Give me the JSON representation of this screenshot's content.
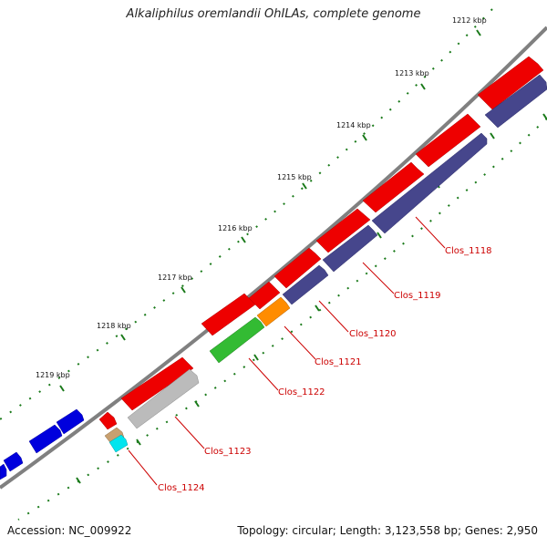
{
  "title": "Alkaliphilus oremlandii OhILAs, complete genome",
  "footer": {
    "accession": "Accession: NC_009922",
    "summary": "Topology: circular; Length: 3,123,558 bp; Genes: 2,950"
  },
  "ticks": [
    "1212 kbp",
    "1213 kbp",
    "1214 kbp",
    "1215 kbp",
    "1216 kbp",
    "1217 kbp",
    "1218 kbp",
    "1219 kbp"
  ],
  "genes": [
    "Clos_1118",
    "Clos_1119",
    "Clos_1120",
    "Clos_1121",
    "Clos_1122",
    "Clos_1123",
    "Clos_1124"
  ],
  "colors": {
    "forward_cds": "#ee0000",
    "reverse_cds": "#46468c",
    "orange": "#ff8c00",
    "green": "#33bb33",
    "gray": "#bbbbbb",
    "tan": "#c8a070",
    "cyan": "#00e5ee",
    "blue": "#0000dd",
    "backbone": "#808080",
    "tick_green": "#1a7a1a",
    "label": "#cc0000"
  }
}
